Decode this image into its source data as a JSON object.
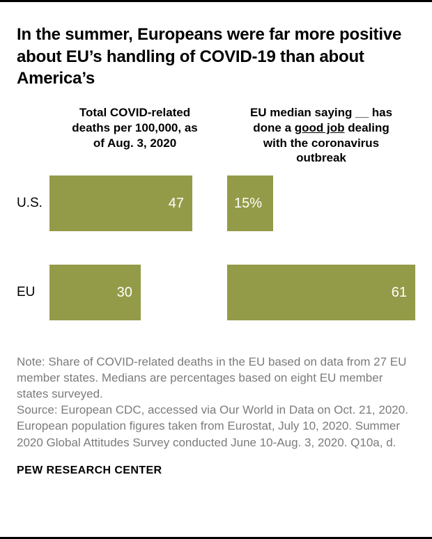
{
  "title": "In the summer, Europeans were far more positive about EU’s handling of COVID-19 than about America’s",
  "left_header": "Total COVID-related deaths per 100,000, as of Aug. 3, 2020",
  "right_header": {
    "prefix": "EU median saying __ has done a ",
    "underlined": "good job",
    "suffix": " dealing with the coronavirus outbreak"
  },
  "chart_data": {
    "type": "bar",
    "orientation": "horizontal",
    "categories": [
      "U.S.",
      "EU"
    ],
    "series": [
      {
        "name": "Total COVID-related deaths per 100,000, as of Aug. 3, 2020",
        "values": [
          47,
          30
        ],
        "labels": [
          "47",
          "30"
        ],
        "axis_max": 47
      },
      {
        "name": "EU median saying __ has done a good job dealing with the coronavirus outbreak",
        "values": [
          15,
          61
        ],
        "labels": [
          "15%",
          "61"
        ],
        "axis_max": 61
      }
    ],
    "bar_color": "#949b48",
    "value_label_color": "#ffffff",
    "grid": false,
    "legend": false
  },
  "note": "Note: Share of COVID-related deaths in the EU based on data from 27 EU member states. Medians are percentages based on eight EU member states surveyed.",
  "source": "Source: European CDC, accessed via Our World in Data on Oct. 21, 2020. European population figures taken from Eurostat, July 10, 2020. Summer 2020 Global Attitudes Survey conducted June 10-Aug. 3, 2020. Q10a, d.",
  "footer": "PEW RESEARCH CENTER"
}
